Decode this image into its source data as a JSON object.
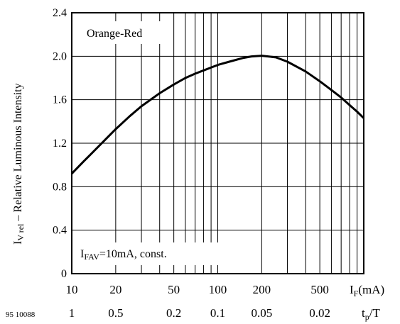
{
  "chart_data": {
    "type": "line",
    "x_scale": "log",
    "grid": true,
    "xlim": [
      10,
      1000
    ],
    "ylim": [
      0,
      2.4
    ],
    "y_ticks": [
      "0",
      "0.4",
      "0.8",
      "1.2",
      "1.6",
      "2.0",
      "2.4"
    ],
    "y_tick_values": [
      0,
      0.4,
      0.8,
      1.2,
      1.6,
      2.0,
      2.4
    ],
    "x_ticks": [
      "10",
      "20",
      "50",
      "100",
      "200",
      "500"
    ],
    "x_tick_values": [
      10,
      20,
      50,
      100,
      200,
      500
    ],
    "x_label": "I",
    "x_label_sub": "F",
    "x_label_tail": "(mA)",
    "duty_ticks": [
      "1",
      "0.5",
      "0.2",
      "0.1",
      "0.05",
      "0.02"
    ],
    "duty_label": "t",
    "duty_label_sub": "p",
    "duty_label_tail": "/T",
    "y_label_main": "I",
    "y_label_sub": "V rel",
    "y_label_tail": " – Relative Luminous Intensity",
    "legend_label": "Orange-Red",
    "condition_main": "I",
    "condition_sub": "FAV",
    "condition_tail": "=10mA, const.",
    "figure_id": "95 10088",
    "series": [
      {
        "x": [
          10,
          12,
          15,
          20,
          25,
          30,
          40,
          50,
          60,
          70,
          80,
          100,
          120,
          150,
          170,
          200,
          250,
          300,
          400,
          500,
          600,
          700,
          800,
          900,
          1000
        ],
        "values": [
          0.92,
          1.03,
          1.16,
          1.33,
          1.45,
          1.54,
          1.66,
          1.74,
          1.8,
          1.84,
          1.87,
          1.92,
          1.95,
          1.985,
          1.998,
          2.005,
          1.99,
          1.95,
          1.86,
          1.77,
          1.69,
          1.62,
          1.55,
          1.49,
          1.43
        ]
      }
    ]
  }
}
